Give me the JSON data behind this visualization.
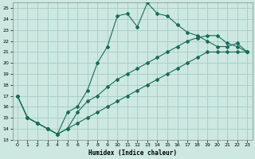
{
  "xlabel": "Humidex (Indice chaleur)",
  "bg_color": "#cce8e0",
  "line_color": "#1a6b5a",
  "grid_color": "#aad0c8",
  "xlim": [
    -0.5,
    23.5
  ],
  "ylim": [
    13,
    25.5
  ],
  "yticks": [
    13,
    14,
    15,
    16,
    17,
    18,
    19,
    20,
    21,
    22,
    23,
    24,
    25
  ],
  "xticks": [
    0,
    1,
    2,
    3,
    4,
    5,
    6,
    7,
    8,
    9,
    10,
    11,
    12,
    13,
    14,
    15,
    16,
    17,
    18,
    19,
    20,
    21,
    22,
    23
  ],
  "series": [
    {
      "x": [
        0,
        1,
        2,
        3,
        4,
        5,
        6,
        7,
        8,
        9,
        10,
        11,
        12,
        13,
        14,
        15,
        16,
        17,
        18,
        19,
        20,
        21,
        22,
        23
      ],
      "y": [
        17,
        15,
        14.5,
        14,
        13.5,
        15.5,
        16,
        17.5,
        20,
        21.5,
        24.3,
        24.5,
        23.3,
        25.5,
        24.5,
        24.3,
        23.5,
        22.8,
        22.5,
        22,
        21.5,
        21.5,
        21.8,
        21
      ]
    },
    {
      "x": [
        0,
        1,
        2,
        3,
        4,
        5,
        6,
        7,
        8,
        9,
        10,
        11,
        12,
        13,
        14,
        15,
        16,
        17,
        18,
        19,
        20,
        21,
        22,
        23
      ],
      "y": [
        17,
        15,
        14.5,
        14,
        13.5,
        14,
        15.5,
        16.5,
        17,
        17.8,
        18.5,
        19,
        19.5,
        20,
        20.5,
        21,
        21.5,
        22,
        22.3,
        22.5,
        22.5,
        21.8,
        21.5,
        21
      ]
    },
    {
      "x": [
        0,
        1,
        2,
        3,
        4,
        5,
        6,
        7,
        8,
        9,
        10,
        11,
        12,
        13,
        14,
        15,
        16,
        17,
        18,
        19,
        20,
        21,
        22,
        23
      ],
      "y": [
        17,
        15,
        14.5,
        14,
        13.5,
        14,
        14.5,
        15,
        15.5,
        16,
        16.5,
        17,
        17.5,
        18,
        18.5,
        19,
        19.5,
        20,
        20.5,
        21,
        21,
        21,
        21,
        21
      ]
    }
  ]
}
